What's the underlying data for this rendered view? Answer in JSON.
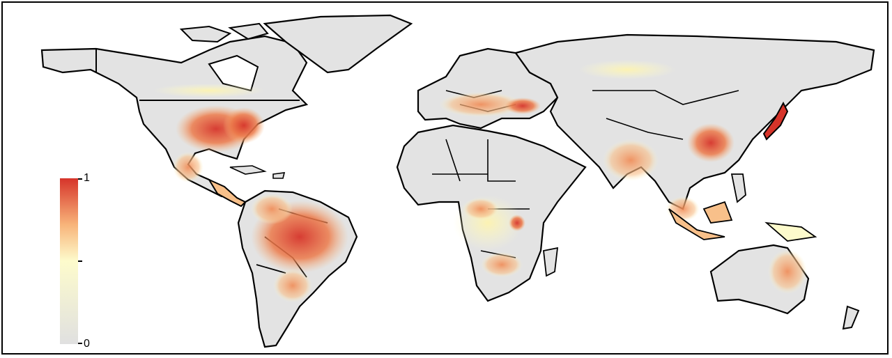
{
  "map": {
    "type": "choropleth-world-map",
    "colors": {
      "ocean": "#ffffff",
      "land_zero": "#e3e3e3",
      "low": "#fdfbcc",
      "mid": "#f8b47a",
      "high": "#d6342a",
      "border": "#000000"
    }
  },
  "legend": {
    "max_label": "1",
    "min_label": "0",
    "colors": [
      "#e0e0e0",
      "#fdfbcc",
      "#f8b47a",
      "#d6342a"
    ]
  }
}
